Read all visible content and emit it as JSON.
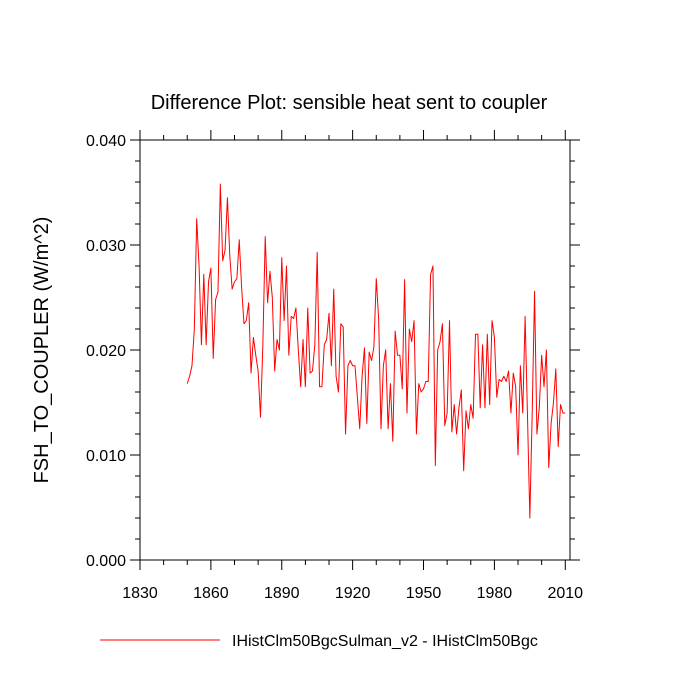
{
  "chart_data": {
    "type": "line",
    "title": "Difference Plot: sensible heat sent to coupler",
    "xlabel": "",
    "ylabel": "FSH_TO_COUPLER  (W/m^2)",
    "xlim": [
      1830,
      2012
    ],
    "ylim": [
      0.0,
      0.04
    ],
    "x_ticks": [
      1830,
      1860,
      1890,
      1920,
      1950,
      1980,
      2010
    ],
    "x_tick_labels": [
      "1830",
      "1860",
      "1890",
      "1920",
      "1950",
      "1980",
      "2010"
    ],
    "y_ticks": [
      0.0,
      0.01,
      0.02,
      0.03,
      0.04
    ],
    "y_tick_labels": [
      "0.000",
      "0.010",
      "0.020",
      "0.030",
      "0.040"
    ],
    "grid": false,
    "legend_position": "bottom",
    "series": [
      {
        "name": "IHistClm50BgcSulman_v2 - IHistClm50Bgc",
        "color": "#ff0000",
        "x_start": 1850,
        "x_step": 1,
        "values": [
          0.0168,
          0.0175,
          0.0185,
          0.022,
          0.0325,
          0.028,
          0.0205,
          0.0272,
          0.0205,
          0.0265,
          0.0278,
          0.0192,
          0.0248,
          0.0255,
          0.0358,
          0.0285,
          0.0295,
          0.0345,
          0.029,
          0.0258,
          0.0265,
          0.0268,
          0.0305,
          0.026,
          0.0225,
          0.0228,
          0.0245,
          0.0178,
          0.0212,
          0.0195,
          0.018,
          0.0136,
          0.0205,
          0.0308,
          0.0245,
          0.0275,
          0.025,
          0.018,
          0.021,
          0.02,
          0.0288,
          0.0228,
          0.028,
          0.0195,
          0.0232,
          0.023,
          0.024,
          0.02,
          0.0165,
          0.021,
          0.0165,
          0.024,
          0.0178,
          0.018,
          0.0205,
          0.0293,
          0.0165,
          0.0165,
          0.0205,
          0.021,
          0.0235,
          0.0185,
          0.0258,
          0.0175,
          0.016,
          0.0225,
          0.0222,
          0.012,
          0.0185,
          0.019,
          0.0185,
          0.0185,
          0.0155,
          0.0125,
          0.0175,
          0.0202,
          0.013,
          0.0198,
          0.019,
          0.0203,
          0.0268,
          0.023,
          0.0125,
          0.0185,
          0.02,
          0.0125,
          0.0168,
          0.0113,
          0.0218,
          0.0195,
          0.0195,
          0.0163,
          0.0267,
          0.014,
          0.022,
          0.0208,
          0.0228,
          0.012,
          0.0168,
          0.016,
          0.0163,
          0.017,
          0.017,
          0.0272,
          0.028,
          0.009,
          0.02,
          0.0208,
          0.0225,
          0.0128,
          0.014,
          0.0228,
          0.0122,
          0.0148,
          0.012,
          0.0145,
          0.0162,
          0.0085,
          0.0142,
          0.0125,
          0.0148,
          0.0135,
          0.0215,
          0.0215,
          0.0145,
          0.0205,
          0.0145,
          0.0215,
          0.0148,
          0.0228,
          0.0212,
          0.0155,
          0.0172,
          0.017,
          0.0175,
          0.017,
          0.018,
          0.014,
          0.0178,
          0.0165,
          0.01,
          0.0185,
          0.014,
          0.0232,
          0.0138,
          0.004,
          0.014,
          0.0256,
          0.012,
          0.0145,
          0.0195,
          0.0165,
          0.02,
          0.0088,
          0.013,
          0.015,
          0.0182,
          0.0108,
          0.0148,
          0.014,
          0.014
        ]
      }
    ]
  }
}
